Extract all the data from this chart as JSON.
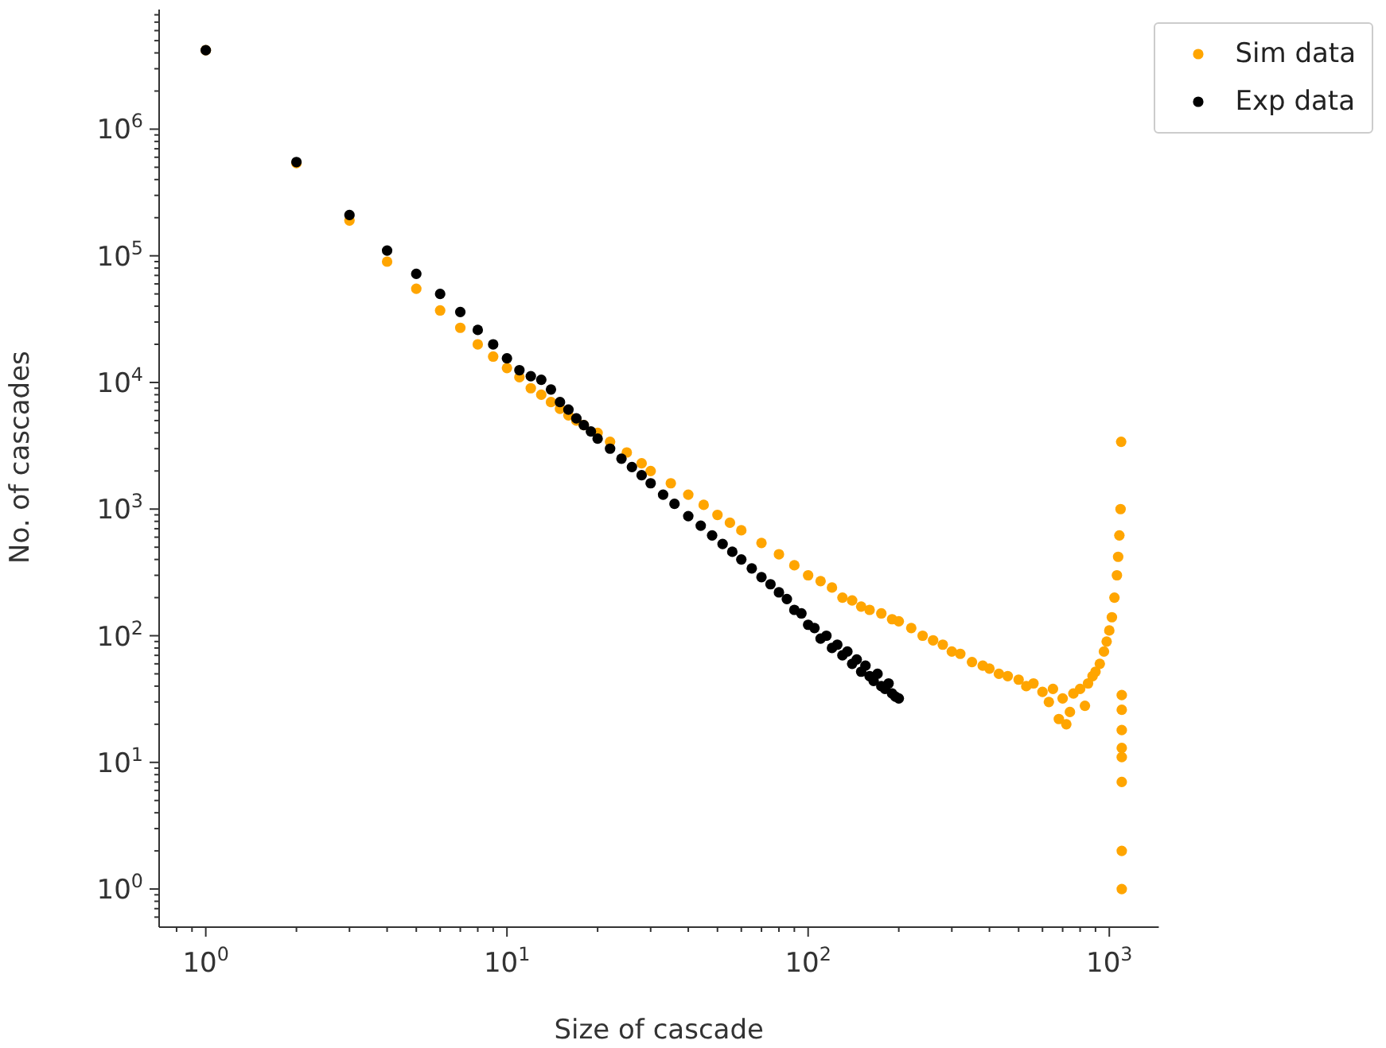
{
  "chart_data": {
    "type": "scatter",
    "xlabel": "Size of cascade",
    "ylabel": "No. of cascades",
    "log": "xy",
    "grid": false,
    "legend": "top right",
    "marker": "circle",
    "xlim": [
      0.7,
      1460
    ],
    "ylim": [
      0.5,
      8800000
    ],
    "xticks": [
      {
        "value": 0.8,
        "label": null
      },
      {
        "value": 0.9,
        "label": null
      },
      {
        "value": 1,
        "label": "10$^{0}$"
      },
      {
        "value": 2,
        "label": null
      },
      {
        "value": 3,
        "label": null
      },
      {
        "value": 4,
        "label": null
      },
      {
        "value": 5,
        "label": null
      },
      {
        "value": 6,
        "label": null
      },
      {
        "value": 7,
        "label": null
      },
      {
        "value": 8,
        "label": null
      },
      {
        "value": 9,
        "label": null
      },
      {
        "value": 10,
        "label": "10$^{1}$"
      },
      {
        "value": 20,
        "label": null
      },
      {
        "value": 30,
        "label": null
      },
      {
        "value": 40,
        "label": null
      },
      {
        "value": 50,
        "label": null
      },
      {
        "value": 60,
        "label": null
      },
      {
        "value": 70,
        "label": null
      },
      {
        "value": 80,
        "label": null
      },
      {
        "value": 90,
        "label": null
      },
      {
        "value": 100,
        "label": "10$^{2}$"
      },
      {
        "value": 200,
        "label": null
      },
      {
        "value": 300,
        "label": null
      },
      {
        "value": 400,
        "label": null
      },
      {
        "value": 500,
        "label": null
      },
      {
        "value": 600,
        "label": null
      },
      {
        "value": 700,
        "label": null
      },
      {
        "value": 800,
        "label": null
      },
      {
        "value": 900,
        "label": null
      },
      {
        "value": 1000,
        "label": "10$^{3}$"
      }
    ],
    "yticks": [
      {
        "value": 0.6,
        "label": null
      },
      {
        "value": 0.7,
        "label": null
      },
      {
        "value": 0.8,
        "label": null
      },
      {
        "value": 0.9,
        "label": null
      },
      {
        "value": 1,
        "label": "10$^{0}$"
      },
      {
        "value": 2,
        "label": null
      },
      {
        "value": 3,
        "label": null
      },
      {
        "value": 4,
        "label": null
      },
      {
        "value": 5,
        "label": null
      },
      {
        "value": 6,
        "label": null
      },
      {
        "value": 7,
        "label": null
      },
      {
        "value": 8,
        "label": null
      },
      {
        "value": 9,
        "label": null
      },
      {
        "value": 10,
        "label": "10$^{1}$"
      },
      {
        "value": 20,
        "label": null
      },
      {
        "value": 30,
        "label": null
      },
      {
        "value": 40,
        "label": null
      },
      {
        "value": 50,
        "label": null
      },
      {
        "value": 60,
        "label": null
      },
      {
        "value": 70,
        "label": null
      },
      {
        "value": 80,
        "label": null
      },
      {
        "value": 90,
        "label": null
      },
      {
        "value": 100,
        "label": "10$^{2}$"
      },
      {
        "value": 200,
        "label": null
      },
      {
        "value": 300,
        "label": null
      },
      {
        "value": 400,
        "label": null
      },
      {
        "value": 500,
        "label": null
      },
      {
        "value": 600,
        "label": null
      },
      {
        "value": 700,
        "label": null
      },
      {
        "value": 800,
        "label": null
      },
      {
        "value": 900,
        "label": null
      },
      {
        "value": 1000,
        "label": "10$^{3}$"
      },
      {
        "value": 2000,
        "label": null
      },
      {
        "value": 3000,
        "label": null
      },
      {
        "value": 4000,
        "label": null
      },
      {
        "value": 5000,
        "label": null
      },
      {
        "value": 6000,
        "label": null
      },
      {
        "value": 7000,
        "label": null
      },
      {
        "value": 8000,
        "label": null
      },
      {
        "value": 9000,
        "label": null
      },
      {
        "value": 10000,
        "label": "10$^{4}$"
      },
      {
        "value": 20000,
        "label": null
      },
      {
        "value": 30000,
        "label": null
      },
      {
        "value": 40000,
        "label": null
      },
      {
        "value": 50000,
        "label": null
      },
      {
        "value": 60000,
        "label": null
      },
      {
        "value": 70000,
        "label": null
      },
      {
        "value": 80000,
        "label": null
      },
      {
        "value": 90000,
        "label": null
      },
      {
        "value": 100000,
        "label": "10$^{5}$"
      },
      {
        "value": 200000,
        "label": null
      },
      {
        "value": 300000,
        "label": null
      },
      {
        "value": 400000,
        "label": null
      },
      {
        "value": 500000,
        "label": null
      },
      {
        "value": 600000,
        "label": null
      },
      {
        "value": 700000,
        "label": null
      },
      {
        "value": 800000,
        "label": null
      },
      {
        "value": 900000,
        "label": null
      },
      {
        "value": 1000000,
        "label": "10$^{6}$"
      },
      {
        "value": 2000000,
        "label": null
      },
      {
        "value": 3000000,
        "label": null
      },
      {
        "value": 4000000,
        "label": null
      },
      {
        "value": 5000000,
        "label": null
      },
      {
        "value": 6000000,
        "label": null
      },
      {
        "value": 7000000,
        "label": null
      },
      {
        "value": 8000000,
        "label": null
      }
    ],
    "series": [
      {
        "name": "Sim data",
        "color": "#ffa500",
        "x": [
          1,
          2,
          3,
          4,
          5,
          6,
          7,
          8,
          9,
          10,
          11,
          12,
          13,
          14,
          15,
          16,
          17,
          18,
          20,
          22,
          25,
          28,
          30,
          35,
          40,
          45,
          50,
          55,
          60,
          70,
          80,
          90,
          100,
          110,
          120,
          130,
          140,
          150,
          160,
          175,
          190,
          200,
          220,
          240,
          260,
          280,
          300,
          320,
          350,
          380,
          400,
          430,
          460,
          500,
          530,
          560,
          600,
          630,
          650,
          680,
          700,
          720,
          740,
          760,
          800,
          830,
          850,
          880,
          900,
          930,
          960,
          980,
          1000,
          1020,
          1040,
          1060,
          1070,
          1080,
          1090,
          1095,
          1100,
          1100,
          1100,
          1100,
          1100,
          1100,
          1100,
          1100
        ],
        "values": [
          4200000,
          540000,
          190000,
          90000,
          55000,
          37000,
          27000,
          20000,
          16000,
          13000,
          11000,
          9000,
          8000,
          7000,
          6200,
          5500,
          5000,
          4600,
          4000,
          3400,
          2800,
          2300,
          2000,
          1600,
          1300,
          1080,
          900,
          780,
          680,
          540,
          440,
          360,
          300,
          270,
          240,
          200,
          190,
          170,
          160,
          150,
          135,
          130,
          115,
          100,
          92,
          85,
          75,
          72,
          62,
          58,
          55,
          50,
          48,
          45,
          40,
          42,
          36,
          30,
          38,
          22,
          32,
          20,
          25,
          35,
          38,
          28,
          42,
          48,
          52,
          60,
          75,
          90,
          110,
          140,
          200,
          300,
          420,
          620,
          1000,
          3400,
          34,
          26,
          18,
          13,
          11,
          7,
          2,
          1
        ]
      },
      {
        "name": "Exp data",
        "color": "#000000",
        "x": [
          1,
          2,
          3,
          4,
          5,
          6,
          7,
          8,
          9,
          10,
          11,
          12,
          13,
          14,
          15,
          16,
          17,
          18,
          19,
          20,
          22,
          24,
          26,
          28,
          30,
          33,
          36,
          40,
          44,
          48,
          52,
          56,
          60,
          65,
          70,
          75,
          80,
          85,
          90,
          95,
          100,
          105,
          110,
          115,
          120,
          125,
          130,
          135,
          140,
          145,
          150,
          155,
          160,
          165,
          170,
          175,
          180,
          185,
          190,
          195,
          200
        ],
        "values": [
          4200000,
          550000,
          210000,
          110000,
          72000,
          50000,
          36000,
          26000,
          20000,
          15500,
          12500,
          11200,
          10500,
          8800,
          7000,
          6100,
          5200,
          4600,
          4100,
          3600,
          3000,
          2500,
          2150,
          1850,
          1600,
          1300,
          1100,
          880,
          740,
          620,
          530,
          460,
          400,
          340,
          290,
          255,
          220,
          195,
          160,
          150,
          122,
          115,
          95,
          100,
          80,
          85,
          70,
          75,
          60,
          65,
          52,
          58,
          48,
          44,
          50,
          40,
          38,
          42,
          35,
          33,
          32
        ]
      }
    ]
  }
}
